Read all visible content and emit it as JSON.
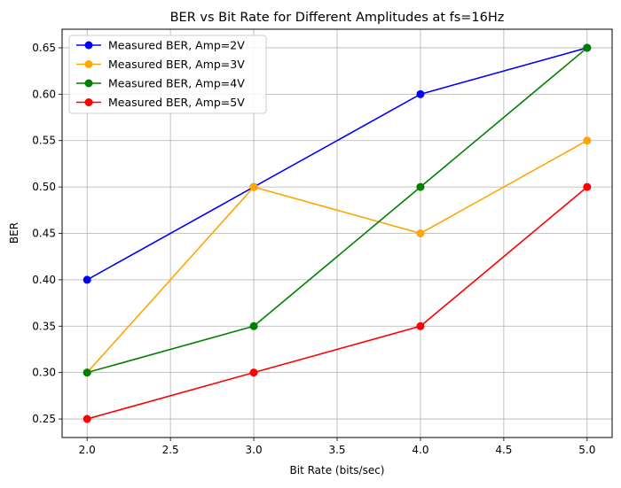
{
  "chart_data": {
    "type": "line",
    "title": "BER vs Bit Rate for Different Amplitudes at fs=16Hz",
    "xlabel": "Bit Rate (bits/sec)",
    "ylabel": "BER",
    "xlim": [
      1.85,
      5.15
    ],
    "ylim": [
      0.23,
      0.67
    ],
    "xticks": [
      2.0,
      2.5,
      3.0,
      3.5,
      4.0,
      4.5,
      5.0
    ],
    "xtick_labels": [
      "2.0",
      "2.5",
      "3.0",
      "3.5",
      "4.0",
      "4.5",
      "5.0"
    ],
    "yticks": [
      0.25,
      0.3,
      0.35,
      0.4,
      0.45,
      0.5,
      0.55,
      0.6,
      0.65
    ],
    "ytick_labels": [
      "0.25",
      "0.30",
      "0.35",
      "0.40",
      "0.45",
      "0.50",
      "0.55",
      "0.60",
      "0.65"
    ],
    "grid": true,
    "legend_position": "top-left",
    "x": [
      2.0,
      3.0,
      4.0,
      5.0
    ],
    "series": [
      {
        "name": "Measured BER, Amp=2V",
        "color": "#0000ff",
        "marker": "circle",
        "values": [
          0.4,
          0.5,
          0.6,
          0.65
        ]
      },
      {
        "name": "Measured BER, Amp=3V",
        "color": "#ffa500",
        "marker": "circle",
        "values": [
          0.3,
          0.5,
          0.45,
          0.55
        ]
      },
      {
        "name": "Measured BER, Amp=4V",
        "color": "#008000",
        "marker": "circle",
        "values": [
          0.3,
          0.35,
          0.5,
          0.65
        ]
      },
      {
        "name": "Measured BER, Amp=5V",
        "color": "#ff0000",
        "marker": "circle",
        "values": [
          0.25,
          0.3,
          0.35,
          0.5
        ]
      }
    ]
  }
}
